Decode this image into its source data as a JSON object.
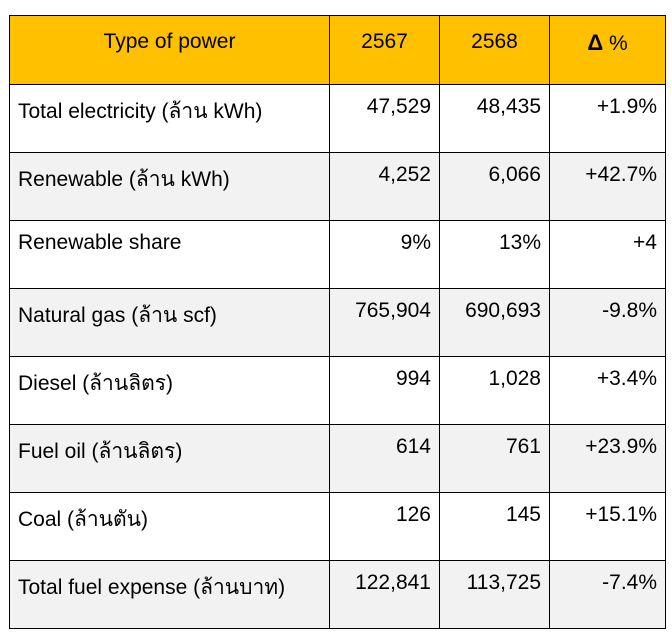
{
  "table": {
    "headers": {
      "type": "Type of power",
      "year1": "2567",
      "year2": "2568",
      "delta_symbol": "Δ",
      "delta_unit": "%"
    },
    "rows": [
      {
        "name": "Total electricity (ล้าน kWh)",
        "y2567": "47,529",
        "y2568": "48,435",
        "delta": "+1.9%"
      },
      {
        "name": "Renewable (ล้าน kWh)",
        "y2567": "4,252",
        "y2568": "6,066",
        "delta": "+42.7%"
      },
      {
        "name": "Renewable share",
        "y2567": "9%",
        "y2568": "13%",
        "delta": "+4"
      },
      {
        "name": "Natural gas (ล้าน scf)",
        "y2567": "765,904",
        "y2568": "690,693",
        "delta": "-9.8%"
      },
      {
        "name": "Diesel (ล้านลิตร)",
        "y2567": "994",
        "y2568": "1,028",
        "delta": "+3.4%"
      },
      {
        "name": "Fuel oil (ล้านลิตร)",
        "y2567": "614",
        "y2568": "761",
        "delta": "+23.9%"
      },
      {
        "name": "Coal (ล้านตัน)",
        "y2567": "126",
        "y2568": "145",
        "delta": "+15.1%"
      },
      {
        "name": "Total fuel expense (ล้านบาท)",
        "y2567": "122,841",
        "y2568": "113,725",
        "delta": "-7.4%"
      }
    ],
    "colors": {
      "header_bg": "#ffc000",
      "alt_row_bg": "#f2f2f2",
      "border": "#000000"
    }
  }
}
